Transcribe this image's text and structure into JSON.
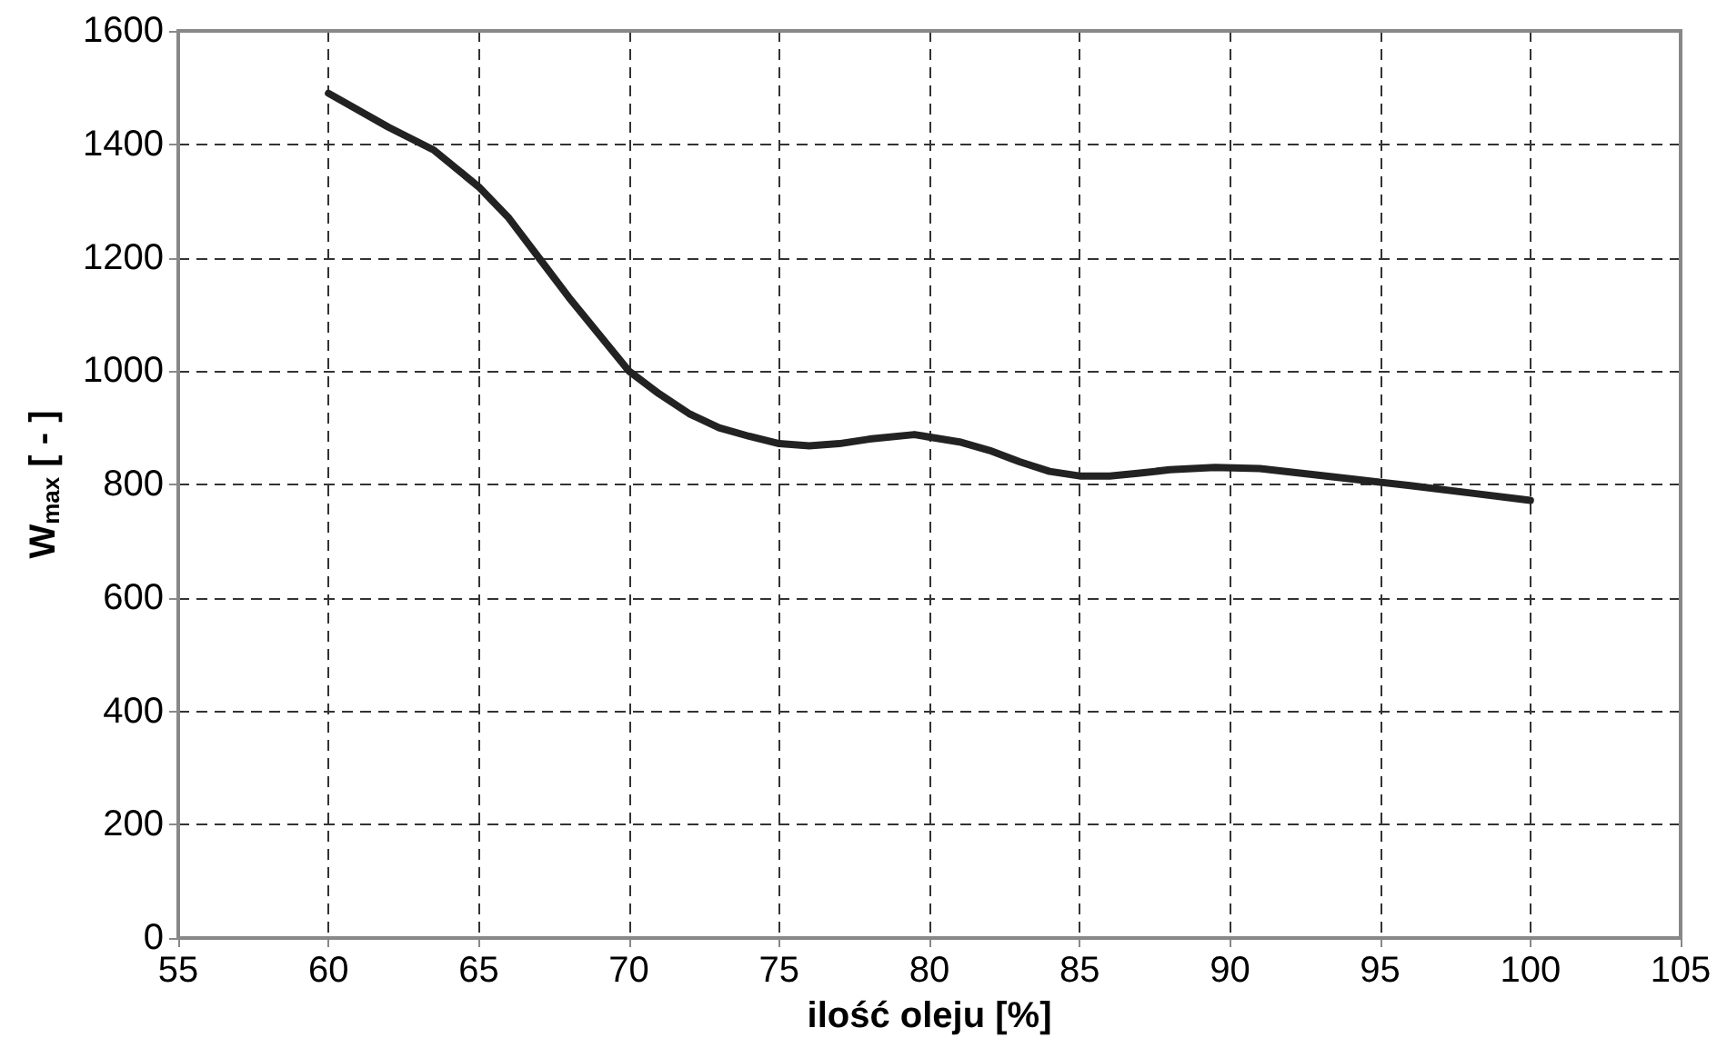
{
  "chart_data": {
    "type": "line",
    "xlabel": "ilość oleju [%]",
    "ylabel": "W$_{max}$ [ - ]",
    "x": [
      60,
      62,
      63.5,
      65,
      66,
      67,
      68,
      69,
      70,
      71,
      72,
      73,
      74,
      75,
      76,
      77,
      78,
      79.5,
      81,
      82,
      83,
      84,
      85,
      86,
      87,
      88,
      89.5,
      91,
      92,
      94,
      96,
      98,
      100
    ],
    "series": [
      {
        "color": "#222222",
        "values": [
          1490,
          1430,
          1390,
          1325,
          1270,
          1200,
          1130,
          1065,
          1000,
          960,
          925,
          900,
          885,
          872,
          868,
          872,
          880,
          888,
          875,
          860,
          840,
          823,
          815,
          815,
          820,
          826,
          830,
          828,
          822,
          810,
          798,
          785,
          772
        ]
      }
    ],
    "xlim": [
      55,
      105
    ],
    "xticks": [
      55,
      60,
      65,
      70,
      75,
      80,
      85,
      90,
      95,
      100,
      105
    ],
    "ylim": [
      0,
      1600
    ],
    "yticks": [
      0,
      200,
      400,
      600,
      800,
      1000,
      1200,
      1400,
      1600
    ],
    "grid": true,
    "marker": "none",
    "line_style": "solid"
  }
}
